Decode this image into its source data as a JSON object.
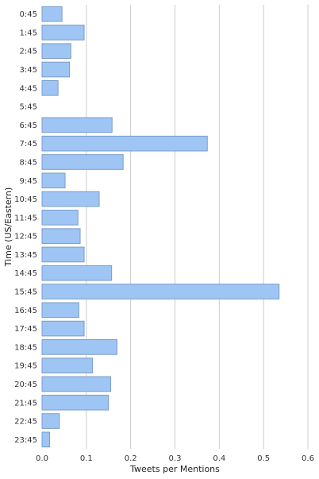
{
  "chart_data": {
    "type": "bar",
    "orientation": "horizontal",
    "xlabel": "Tweets per Mentions",
    "ylabel": "Time (US/Eastern)",
    "xlim": [
      0.0,
      0.6
    ],
    "x_ticks": [
      "0.0",
      "0.1",
      "0.2",
      "0.3",
      "0.4",
      "0.5",
      "0.6"
    ],
    "grid": "vertical",
    "bar_color": "#9fc5f4",
    "categories": [
      "0:45",
      "1:45",
      "2:45",
      "3:45",
      "4:45",
      "5:45",
      "6:45",
      "7:45",
      "8:45",
      "9:45",
      "10:45",
      "11:45",
      "12:45",
      "13:45",
      "14:45",
      "15:45",
      "16:45",
      "17:45",
      "18:45",
      "19:45",
      "20:45",
      "21:45",
      "22:45",
      "23:45"
    ],
    "values": [
      0.045,
      0.095,
      0.065,
      0.062,
      0.036,
      0.0,
      0.158,
      0.373,
      0.183,
      0.052,
      0.129,
      0.081,
      0.086,
      0.095,
      0.157,
      0.535,
      0.083,
      0.095,
      0.169,
      0.114,
      0.155,
      0.15,
      0.039,
      0.017
    ]
  }
}
